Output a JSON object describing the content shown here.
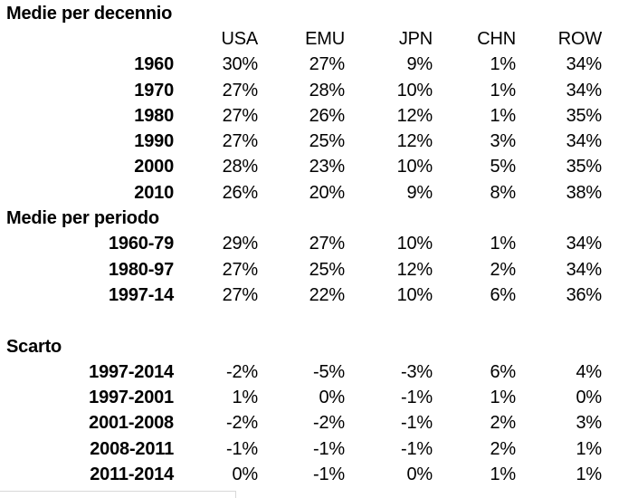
{
  "chart_data": {
    "type": "table",
    "title": "Medie per decennio",
    "columns": [
      "USA",
      "EMU",
      "JPN",
      "CHN",
      "ROW"
    ],
    "sections": [
      {
        "title": "Medie per decennio",
        "rows": [
          {
            "label": "1960",
            "values": [
              "30%",
              "27%",
              "9%",
              "1%",
              "34%"
            ]
          },
          {
            "label": "1970",
            "values": [
              "27%",
              "28%",
              "10%",
              "1%",
              "34%"
            ]
          },
          {
            "label": "1980",
            "values": [
              "27%",
              "26%",
              "12%",
              "1%",
              "35%"
            ]
          },
          {
            "label": "1990",
            "values": [
              "27%",
              "25%",
              "12%",
              "3%",
              "34%"
            ]
          },
          {
            "label": "2000",
            "values": [
              "28%",
              "23%",
              "10%",
              "5%",
              "35%"
            ]
          },
          {
            "label": "2010",
            "values": [
              "26%",
              "20%",
              "9%",
              "8%",
              "38%"
            ]
          }
        ]
      },
      {
        "title": "Medie per periodo",
        "rows": [
          {
            "label": "1960-79",
            "values": [
              "29%",
              "27%",
              "10%",
              "1%",
              "34%"
            ]
          },
          {
            "label": "1980-97",
            "values": [
              "27%",
              "25%",
              "12%",
              "2%",
              "34%"
            ]
          },
          {
            "label": "1997-14",
            "values": [
              "27%",
              "22%",
              "10%",
              "6%",
              "36%"
            ]
          }
        ]
      },
      {
        "title": "Scarto",
        "rows": [
          {
            "label": "1997-2014",
            "values": [
              "-2%",
              "-5%",
              "-3%",
              "6%",
              "4%"
            ]
          },
          {
            "label": "1997-2001",
            "values": [
              "1%",
              "0%",
              "-1%",
              "1%",
              "0%"
            ]
          },
          {
            "label": "2001-2008",
            "values": [
              "-2%",
              "-2%",
              "-1%",
              "2%",
              "3%"
            ]
          },
          {
            "label": "2008-2011",
            "values": [
              "-1%",
              "-1%",
              "-1%",
              "2%",
              "1%"
            ]
          },
          {
            "label": "2011-2014",
            "values": [
              "0%",
              "-1%",
              "0%",
              "1%",
              "1%"
            ]
          }
        ]
      }
    ],
    "layout": {
      "grid": "off",
      "value_alignment": "right"
    },
    "colors": {
      "text": "#000000",
      "background": "#ffffff",
      "cell_border_fragment": "#d8d8d8"
    }
  }
}
